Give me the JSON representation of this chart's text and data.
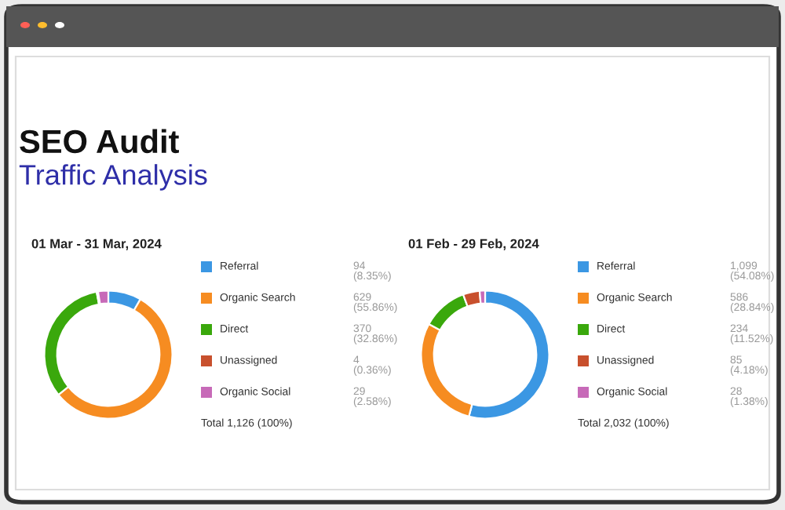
{
  "chart_data": [
    {
      "type": "other",
      "title": "SEO Audit",
      "subtitle": "Traffic Analysis"
    },
    {
      "type": "donut",
      "title": "01 Mar - 31 Mar, 2024",
      "categories": [
        "Referral",
        "Organic Search",
        "Direct",
        "Unassigned",
        "Organic Social"
      ],
      "values": [
        94,
        629,
        370,
        4,
        29
      ],
      "colors": [
        "#3b97e3",
        "#f68c21",
        "#3aa80c",
        "#c8502d",
        "#c76ab8"
      ],
      "value_labels": [
        "94\n(8.35%)",
        "629\n(55.86%)",
        "370\n(32.86%)",
        "4\n(0.36%)",
        "29\n(2.58%)"
      ],
      "annotations": [
        "Total 1,126 (100%)"
      ],
      "legend": "right"
    },
    {
      "type": "donut",
      "title": "01 Feb - 29 Feb, 2024",
      "categories": [
        "Referral",
        "Organic Search",
        "Direct",
        "Unassigned",
        "Organic Social"
      ],
      "values": [
        1099,
        586,
        234,
        85,
        28
      ],
      "colors": [
        "#3b97e3",
        "#f68c21",
        "#3aa80c",
        "#c8502d",
        "#c76ab8"
      ],
      "value_labels": [
        "1,099\n(54.08%)",
        "586\n(28.84%)",
        "234\n(11.52%)",
        "85\n(4.18%)",
        "28\n(1.38%)"
      ],
      "annotations": [
        "Total 2,032 (100%)"
      ],
      "legend": "right"
    }
  ]
}
